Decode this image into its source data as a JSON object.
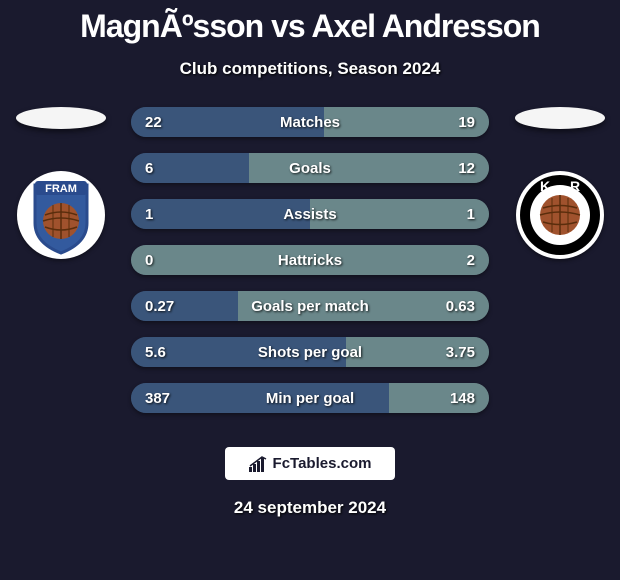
{
  "colors": {
    "background": "#1a1a2e",
    "left_fill": "#3a557a",
    "right_fill": "#6a878a",
    "track_left": "#2a3a52",
    "track_right": "#4a5a5c",
    "bar_border": "#1a1a2e"
  },
  "title": "MagnÃºsson vs Axel Andresson",
  "subtitle": "Club competitions, Season 2024",
  "date": "24 september 2024",
  "branding": "FcTables.com",
  "crest_left": {
    "bg": "#ffffff",
    "shield_stroke": "#2a4b8d",
    "shield_fill": "#335a9e",
    "ball": "#a0522d",
    "banner_text": "FRAM",
    "banner_bg": "#2a4b8d"
  },
  "crest_right": {
    "bg": "#ffffff",
    "ring": "#000000",
    "ball": "#a0522d",
    "letters": "KR"
  },
  "stats": [
    {
      "label": "Matches",
      "left_val": "22",
      "right_val": "19",
      "left_pct": 54,
      "right_pct": 46,
      "inverse": false
    },
    {
      "label": "Goals",
      "left_val": "6",
      "right_val": "12",
      "left_pct": 33,
      "right_pct": 67,
      "inverse": false
    },
    {
      "label": "Assists",
      "left_val": "1",
      "right_val": "1",
      "left_pct": 50,
      "right_pct": 50,
      "inverse": false
    },
    {
      "label": "Hattricks",
      "left_val": "0",
      "right_val": "2",
      "left_pct": 0,
      "right_pct": 100,
      "inverse": false
    },
    {
      "label": "Goals per match",
      "left_val": "0.27",
      "right_val": "0.63",
      "left_pct": 30,
      "right_pct": 70,
      "inverse": false
    },
    {
      "label": "Shots per goal",
      "left_val": "5.6",
      "right_val": "3.75",
      "left_pct": 60,
      "right_pct": 40,
      "inverse": true
    },
    {
      "label": "Min per goal",
      "left_val": "387",
      "right_val": "148",
      "left_pct": 72,
      "right_pct": 28,
      "inverse": true
    }
  ]
}
